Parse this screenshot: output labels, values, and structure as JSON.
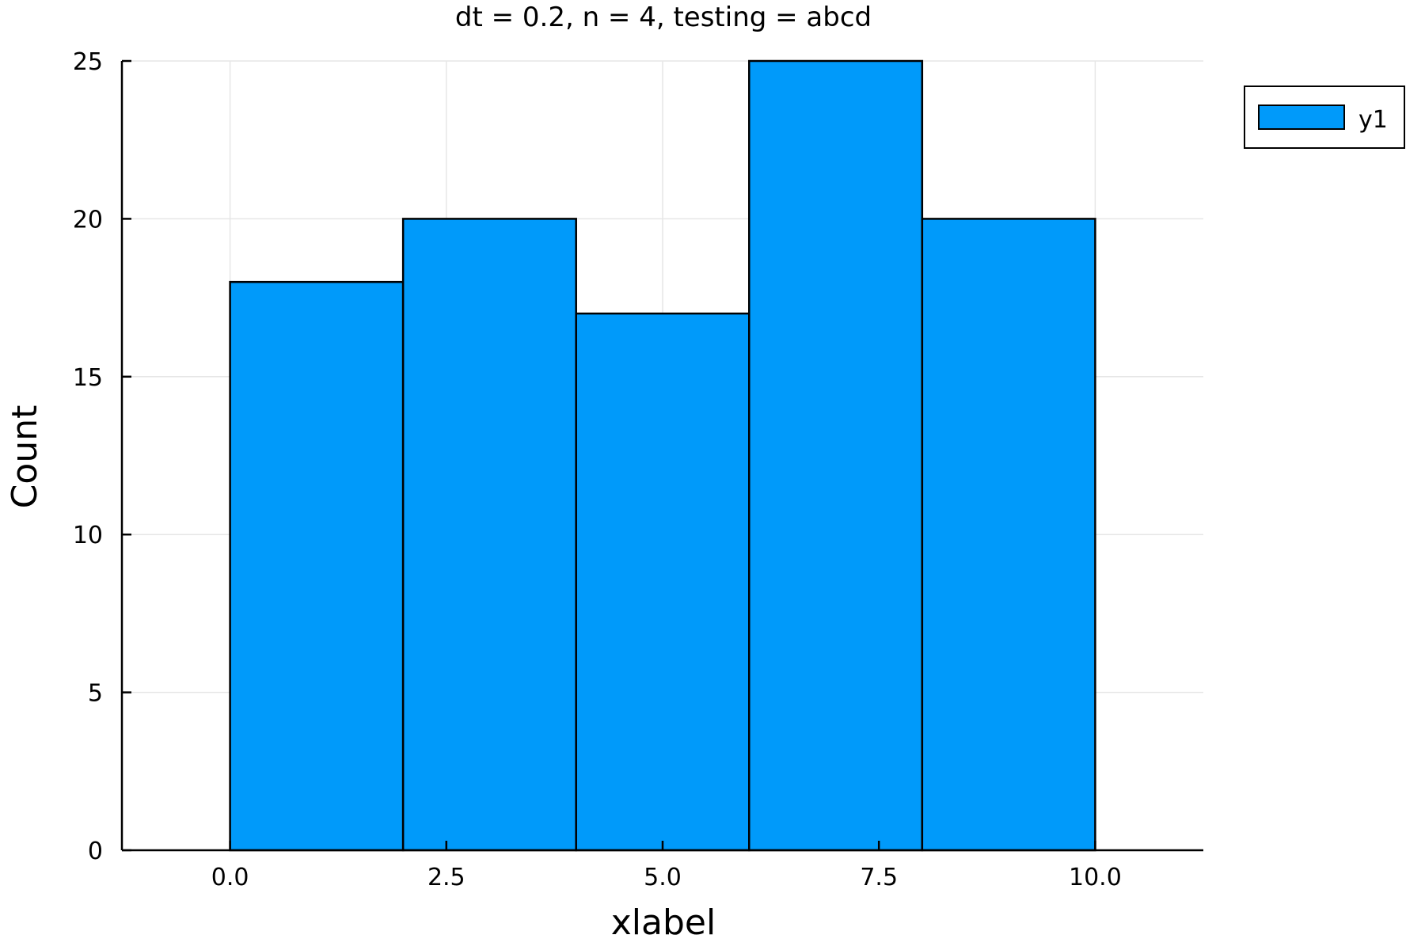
{
  "chart_data": {
    "type": "bar",
    "title": "dt = 0.2, n = 4, testing = abcd",
    "xlabel": "xlabel",
    "ylabel": "Count",
    "bins": [
      {
        "start": 0,
        "end": 2,
        "value": 18
      },
      {
        "start": 2,
        "end": 4,
        "value": 20
      },
      {
        "start": 4,
        "end": 6,
        "value": 17
      },
      {
        "start": 6,
        "end": 8,
        "value": 25
      },
      {
        "start": 8,
        "end": 10,
        "value": 20
      }
    ],
    "xlim": [
      -1.25,
      11.25
    ],
    "ylim": [
      0,
      25
    ],
    "x_ticks": [
      0,
      2.5,
      5,
      7.5,
      10
    ],
    "x_tick_labels": [
      "0.0",
      "2.5",
      "5.0",
      "7.5",
      "10.0"
    ],
    "y_ticks": [
      0,
      5,
      10,
      15,
      20,
      25
    ],
    "y_tick_labels": [
      "0",
      "5",
      "10",
      "15",
      "20",
      "25"
    ],
    "grid": true,
    "legend": {
      "placement": "top-right",
      "entries": [
        {
          "name": "y1"
        }
      ]
    },
    "colors": {
      "bar": "#009AFA",
      "edge": "#000000",
      "grid": "#E6E6E6"
    }
  }
}
